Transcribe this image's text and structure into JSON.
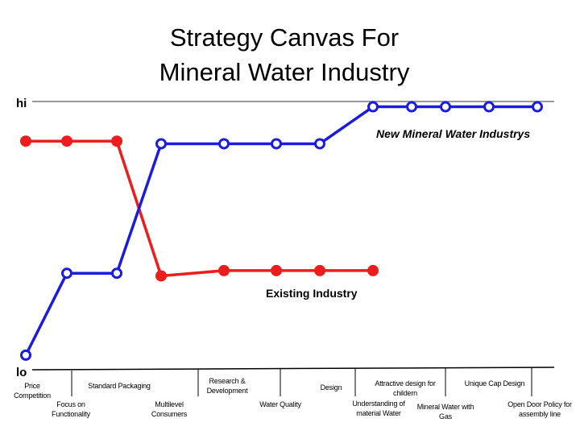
{
  "chart_data": {
    "type": "line",
    "title_lines": [
      "Strategy Canvas For",
      "Mineral Water Industry"
    ],
    "ylabel_top": "hi",
    "ylabel_bottom": "lo",
    "ylim": [
      0,
      10
    ],
    "categories": [
      "Price Competition",
      "Focus on Functionality",
      "Standard Packaging",
      "Multilevel Consumers",
      "Research & Development",
      "Water Quality",
      "Design",
      "Understanding of material Water",
      "Attractive design for childern",
      "Mineral Water with Gas",
      "Unique Cap Design",
      "Open Door Policy for assembly line"
    ],
    "series": [
      {
        "name": "Existing Industry",
        "color": "#ee1c1c",
        "marker": "filled-circle",
        "values": [
          8.5,
          8.5,
          8.5,
          3.4,
          3.6,
          3.6,
          3.6,
          3.6,
          null,
          null,
          null,
          null
        ]
      },
      {
        "name": "New Mineral Water Industrys",
        "color": "#1c1ce0",
        "marker": "hollow-circle",
        "values": [
          0.4,
          3.5,
          3.5,
          8.4,
          8.4,
          8.4,
          8.4,
          9.8,
          9.8,
          9.8,
          9.8,
          9.8
        ]
      }
    ],
    "grid": false,
    "legend": "inline labels"
  }
}
